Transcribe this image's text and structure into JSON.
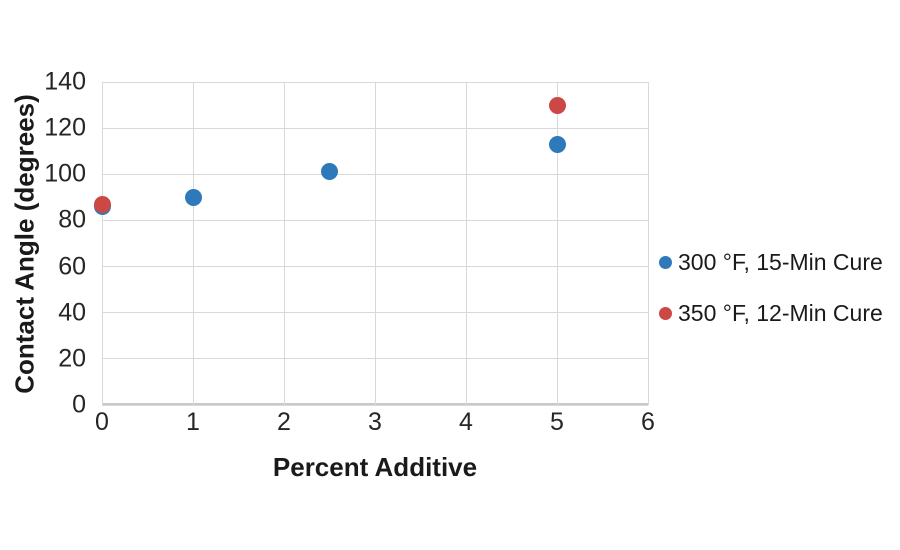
{
  "chart_data": {
    "type": "scatter",
    "title": "",
    "xlabel": "Percent Additive",
    "ylabel": "Contact Angle (degrees)",
    "xlim": [
      0,
      6
    ],
    "ylim": [
      0,
      140
    ],
    "xticks": [
      0,
      1,
      2,
      3,
      4,
      5,
      6
    ],
    "yticks": [
      0,
      20,
      40,
      60,
      80,
      100,
      120,
      140
    ],
    "grid": true,
    "legend_position": "right",
    "series": [
      {
        "name": "300 °F, 15-Min Cure",
        "color": "#2E79B9",
        "points": [
          [
            0,
            86
          ],
          [
            1,
            90
          ],
          [
            2.5,
            101
          ],
          [
            5,
            113
          ]
        ]
      },
      {
        "name": "350 °F, 12-Min Cure",
        "color": "#CC4845",
        "points": [
          [
            0,
            87
          ],
          [
            5,
            130
          ]
        ]
      }
    ]
  },
  "colors": {
    "background": "#FFFFFF",
    "gridline": "#D9D9D9",
    "axis_line": "#C9C9C9",
    "tick_label": "#262626",
    "axis_title": "#1A1A1A",
    "legend_text": "#1A1A1A"
  }
}
